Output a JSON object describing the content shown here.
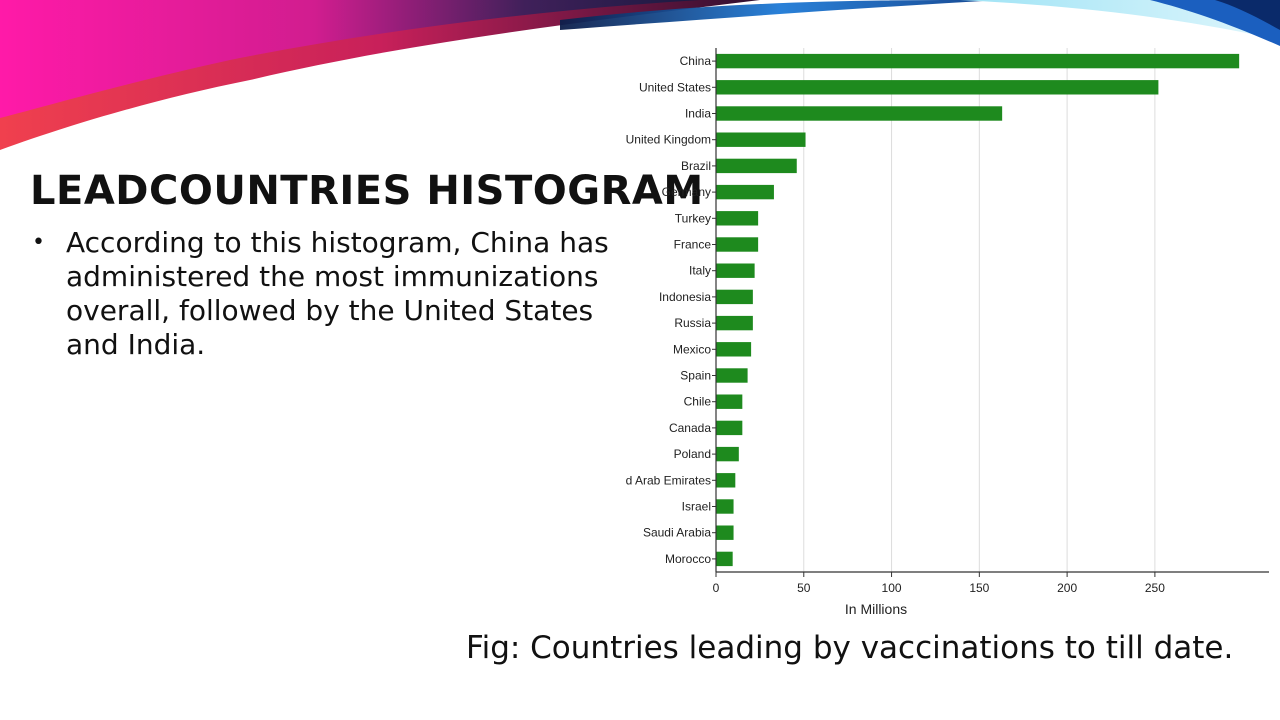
{
  "slide": {
    "title": "LEADCOUNTRIES HISTOGRAM",
    "bullet": "According to this histogram, China has administered the most immunizations overall, followed by the United States and India.",
    "caption": "Fig: Countries leading by vaccinations to till date."
  },
  "colors": {
    "bar": "#1e8a1e",
    "swoosh_magenta": "#e0229a",
    "swoosh_red": "#e8384a",
    "swoosh_blue": "#1e7ad6",
    "swoosh_cyan": "#6fd8f0"
  },
  "chart_data": {
    "type": "bar",
    "orientation": "horizontal",
    "categories": [
      "China",
      "United States",
      "India",
      "United Kingdom",
      "Brazil",
      "Germany",
      "Turkey",
      "France",
      "Italy",
      "Indonesia",
      "Russia",
      "Mexico",
      "Spain",
      "Chile",
      "Canada",
      "Poland",
      "United Arab Emirates",
      "Israel",
      "Saudi Arabia",
      "Morocco"
    ],
    "values": [
      298,
      252,
      163,
      51,
      46,
      33,
      24,
      24,
      22,
      21,
      21,
      20,
      18,
      15,
      15,
      13,
      11,
      10,
      10,
      9.5
    ],
    "xlabel": "In Millions",
    "ylabel": "",
    "xlim": [
      0,
      315
    ],
    "xticks": [
      0,
      50,
      100,
      150,
      200,
      250
    ],
    "grid": "vertical"
  }
}
